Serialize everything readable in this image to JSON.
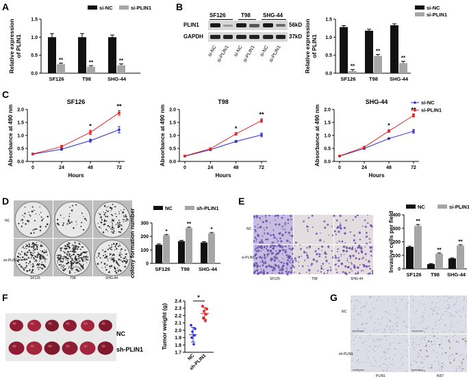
{
  "panel_labels": [
    "A",
    "B",
    "C",
    "D",
    "E",
    "F",
    "G"
  ],
  "colors": {
    "black": "#111111",
    "gray": "#a6a6a6",
    "blue": "#2b2bd6",
    "red": "#e02626",
    "bloodred": "#b0203a",
    "purple_stain": "#6a4fa8",
    "tissue": "#dcdde6"
  },
  "western": {
    "cells": [
      "SF126",
      "T98",
      "SHG-44"
    ],
    "bands": [
      {
        "name": "PLIN1",
        "kd": "56kD"
      },
      {
        "name": "GAPDH",
        "kd": "37kD"
      }
    ],
    "lanes": [
      "si-NC",
      "si-PLIN1",
      "si-NC",
      "si-PLIN1",
      "si-NC",
      "si-PLIN1"
    ]
  },
  "colony_photos": {
    "rows": [
      "NC",
      "sh-PLIN1"
    ],
    "cols": [
      "SF126",
      "T98",
      "SHG-44"
    ]
  },
  "invasion_photos": {
    "rows": [
      "NC",
      "si-PLIN1"
    ],
    "cols": [
      "SF126",
      "T98",
      "SHG-44"
    ]
  },
  "tumor_photos": {
    "rows": [
      "NC",
      "sh-PLIN1"
    ]
  },
  "ihc_photos": {
    "rows": [
      "NC",
      "sh-PLIN1"
    ],
    "cols": [
      "PLIN1",
      "Ki67"
    ]
  },
  "chart_data": [
    {
      "id": "A",
      "type": "bar",
      "ylabel": "Relative expression of PLIN1",
      "categories": [
        "SF126",
        "T98",
        "SHG-44"
      ],
      "series": [
        {
          "name": "si-NC",
          "values": [
            1.0,
            1.0,
            1.0
          ],
          "errors": [
            0.1,
            0.1,
            0.06
          ]
        },
        {
          "name": "si-PLIN1",
          "values": [
            0.25,
            0.18,
            0.22
          ],
          "errors": [
            0.03,
            0.03,
            0.04
          ]
        }
      ],
      "ylim": [
        0,
        1.5
      ],
      "yticks": [
        "0.0",
        "0.5",
        "1.0",
        "1.5"
      ],
      "annotations": [
        "**",
        "**",
        "**"
      ],
      "legend": [
        "si-NC",
        "si-PLIN1"
      ]
    },
    {
      "id": "B",
      "type": "bar",
      "ylabel": "Relative expression of PLIN1",
      "categories": [
        "SF126",
        "T98",
        "SHG-44"
      ],
      "series": [
        {
          "name": "si-NC",
          "values": [
            1.28,
            1.18,
            1.33
          ],
          "errors": [
            0.04,
            0.04,
            0.04
          ]
        },
        {
          "name": "si-PLIN1",
          "values": [
            0.06,
            0.48,
            0.28
          ],
          "errors": [
            0.04,
            0.04,
            0.05
          ]
        }
      ],
      "ylim": [
        0,
        1.5
      ],
      "yticks": [
        "0.0",
        "0.5",
        "1.0",
        "1.5"
      ],
      "annotations": [
        "**",
        "**",
        "**"
      ],
      "legend": [
        "si-NC",
        "si-PLIN1"
      ]
    },
    {
      "id": "C1",
      "type": "line",
      "title": "SF126",
      "xlabel": "Hours",
      "ylabel": "Absorbance at 490 nm",
      "x": [
        0,
        24,
        48,
        72
      ],
      "xticks": [
        "0",
        "24",
        "48",
        "72"
      ],
      "series": [
        {
          "name": "si-NC",
          "values": [
            0.28,
            0.47,
            0.8,
            1.22
          ],
          "errors": [
            0.02,
            0.04,
            0.06,
            0.12
          ]
        },
        {
          "name": "si-PLIN1",
          "values": [
            0.29,
            0.57,
            1.12,
            1.87
          ],
          "errors": [
            0.02,
            0.05,
            0.08,
            0.09
          ]
        }
      ],
      "ylim": [
        0,
        2.0
      ],
      "yticks": [
        "0.0",
        "0.5",
        "1.0",
        "1.5",
        "2.0"
      ],
      "annotations": [
        {
          "x": 48,
          "text": "*"
        },
        {
          "x": 72,
          "text": "**"
        }
      ]
    },
    {
      "id": "C2",
      "type": "line",
      "title": "T98",
      "xlabel": "Hours",
      "ylabel": "Absorbance at 490 nm",
      "x": [
        0,
        24,
        48,
        72
      ],
      "xticks": [
        "0",
        "24",
        "48",
        "72"
      ],
      "series": [
        {
          "name": "si-NC",
          "values": [
            0.2,
            0.45,
            0.77,
            1.02
          ],
          "errors": [
            0.02,
            0.03,
            0.04,
            0.07
          ]
        },
        {
          "name": "si-PLIN1",
          "values": [
            0.21,
            0.49,
            1.06,
            1.57
          ],
          "errors": [
            0.02,
            0.03,
            0.05,
            0.07
          ]
        }
      ],
      "ylim": [
        0,
        2.0
      ],
      "yticks": [
        "0.0",
        "0.5",
        "1.0",
        "1.5",
        "2.0"
      ],
      "annotations": [
        {
          "x": 48,
          "text": "*"
        },
        {
          "x": 72,
          "text": "**"
        }
      ]
    },
    {
      "id": "C3",
      "type": "line",
      "title": "SHG-44",
      "xlabel": "Hours",
      "ylabel": "Absorbance at 490 nm",
      "x": [
        0,
        24,
        48,
        72
      ],
      "xticks": [
        "0",
        "24",
        "48",
        "72"
      ],
      "series": [
        {
          "name": "si-NC",
          "values": [
            0.2,
            0.5,
            0.88,
            1.16
          ],
          "errors": [
            0.02,
            0.03,
            0.03,
            0.07
          ]
        },
        {
          "name": "si-PLIN1",
          "values": [
            0.21,
            0.55,
            1.17,
            1.77
          ],
          "errors": [
            0.02,
            0.03,
            0.05,
            0.06
          ]
        }
      ],
      "ylim": [
        0,
        2.0
      ],
      "yticks": [
        "0.0",
        "0.5",
        "1.0",
        "1.5",
        "2.0"
      ],
      "annotations": [
        {
          "x": 48,
          "text": "*"
        },
        {
          "x": 72,
          "text": "**"
        }
      ],
      "legend": [
        "si-NC",
        "si-PLIN1"
      ]
    },
    {
      "id": "D",
      "type": "bar",
      "ylabel": "colony formation number",
      "categories": [
        "SF126",
        "T98",
        "SHG-44"
      ],
      "series": [
        {
          "name": "NC",
          "values": [
            138,
            165,
            155
          ],
          "errors": [
            6,
            6,
            6
          ]
        },
        {
          "name": "sh-PLIN1",
          "values": [
            208,
            263,
            223
          ],
          "errors": [
            6,
            6,
            6
          ]
        }
      ],
      "ylim": [
        0,
        300
      ],
      "yticks": [
        "0",
        "100",
        "200",
        "300"
      ],
      "annotations": [
        "*",
        "**",
        "*"
      ],
      "legend": [
        "NC",
        "sh-PLIN1"
      ]
    },
    {
      "id": "E",
      "type": "bar",
      "ylabel": "Invasive cells per field",
      "categories": [
        "SF126",
        "T98",
        "SHG-44"
      ],
      "series": [
        {
          "name": "NC",
          "values": [
            162,
            35,
            77
          ],
          "errors": [
            5,
            4,
            4
          ]
        },
        {
          "name": "si-PLIN1",
          "values": [
            318,
            112,
            172
          ],
          "errors": [
            10,
            5,
            6
          ]
        }
      ],
      "ylim": [
        0,
        400
      ],
      "yticks": [
        "0",
        "100",
        "200",
        "300",
        "400"
      ],
      "annotations": [
        "**",
        "**",
        "**"
      ],
      "legend": [
        "NC",
        "si-PLIN1"
      ]
    },
    {
      "id": "F",
      "type": "scatter",
      "ylabel": "Tumor weight (g)",
      "title_star": "*",
      "categories": [
        "NC",
        "sh-PLIN1"
      ],
      "series": [
        {
          "name": "NC",
          "values": [
            2.07,
            2.02,
            1.98,
            1.93,
            1.9,
            1.81
          ],
          "mean": 1.94,
          "sd": 0.1
        },
        {
          "name": "sh-PLIN1",
          "values": [
            2.33,
            2.29,
            2.26,
            2.22,
            2.17,
            2.13
          ],
          "mean": 2.23,
          "sd": 0.08
        }
      ],
      "ylim": [
        1.7,
        2.4
      ],
      "yticks": [
        "1.7",
        "1.8",
        "1.9",
        "2.0",
        "2.1",
        "2.2",
        "2.3",
        "2.4"
      ]
    }
  ]
}
